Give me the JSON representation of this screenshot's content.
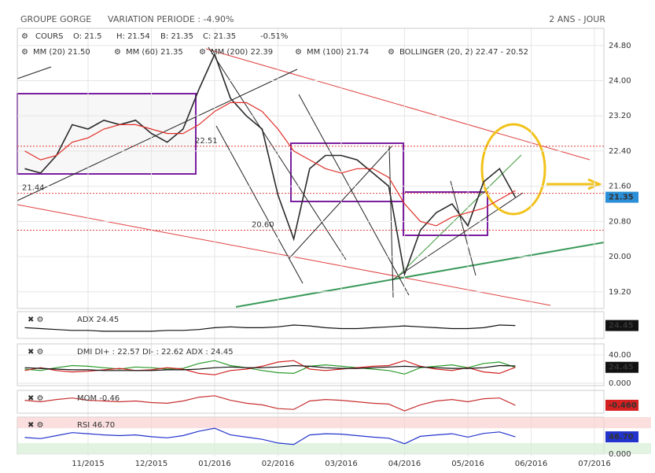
{
  "header": {
    "title": "GROUPE GORGE",
    "variation": "VARIATION PERIODE : -4.90%",
    "period": "2 ANS - JOUR"
  },
  "chart_data": [
    {
      "type": "line",
      "legend": {
        "cours": "COURS",
        "open": "O: 21.5",
        "high": "H: 21.54",
        "low": "B: 21.35",
        "close": "C: 21.35",
        "change": "-0.51%",
        "indicators": [
          {
            "name": "MM (20) 21.50",
            "color": "#e0302a"
          },
          {
            "name": "MM (60) 21.35",
            "color": "#e3a52a"
          },
          {
            "name": "MM (200) 22.39",
            "color": "#3a8a3a"
          },
          {
            "name": "MM (100) 21.74",
            "color": "#2bb3c0"
          },
          {
            "name": "BOLLINGER (20, 2) 22.47 - 20.52",
            "color": "#e39a2a"
          }
        ]
      },
      "categories": [
        null,
        null,
        null,
        null,
        "11/2015",
        null,
        null,
        null,
        "12/2015",
        null,
        null,
        null,
        "01/2016",
        null,
        null,
        null,
        "02/2016",
        null,
        null,
        null,
        "03/2016",
        null,
        null,
        null,
        "04/2016",
        null,
        null,
        null,
        "05/2016",
        null,
        null,
        null,
        "06/2016",
        null,
        null,
        null,
        "07/2016"
      ],
      "series": [
        {
          "name": "COURS",
          "color": "#2a2a2a",
          "values": [
            22.0,
            21.9,
            22.3,
            23.0,
            22.9,
            23.1,
            23.0,
            23.1,
            22.8,
            22.6,
            22.9,
            23.8,
            24.6,
            23.6,
            23.2,
            22.9,
            21.4,
            20.4,
            22.0,
            22.3,
            22.3,
            22.2,
            21.9,
            21.6,
            19.6,
            20.6,
            21.0,
            21.2,
            20.7,
            21.7,
            22.0,
            21.35,
            null,
            null,
            null,
            null,
            null
          ]
        },
        {
          "name": "MM (20)",
          "color": "#e0302a",
          "values": [
            22.4,
            22.2,
            22.3,
            22.6,
            22.7,
            22.9,
            23.0,
            23.0,
            22.9,
            22.8,
            22.8,
            23.0,
            23.3,
            23.5,
            23.5,
            23.3,
            22.9,
            22.4,
            22.2,
            22.0,
            21.9,
            22.0,
            22.0,
            21.8,
            21.2,
            20.8,
            20.7,
            20.9,
            21.0,
            21.1,
            21.3,
            21.5,
            null,
            null,
            null,
            null,
            null
          ]
        }
      ],
      "ylim": [
        18.82,
        25.19
      ],
      "yticks": [
        {
          "value": 19.2,
          "label": "19.20"
        },
        {
          "value": 20,
          "label": "20.00"
        },
        {
          "value": 20.8,
          "label": "20.80"
        },
        {
          "value": 21.6,
          "label": "21.60"
        },
        {
          "value": 22.4,
          "label": "22.40"
        },
        {
          "value": 23.2,
          "label": "23.20"
        },
        {
          "value": 24,
          "label": "24.00"
        },
        {
          "value": 24.8,
          "label": "24.80"
        }
      ],
      "annotations": [
        21.44,
        22.51,
        {
          "value": 20.6,
          "label": "20.60"
        }
      ],
      "last_label": "21.35",
      "last_color": "#2b8fd8"
    },
    {
      "type": "line",
      "title": "ADX 24.45",
      "series": [
        {
          "color": "#111111",
          "values": [
            22,
            21,
            20,
            19,
            19,
            18,
            18,
            18,
            18,
            19,
            19,
            20,
            22,
            23,
            22,
            22,
            23,
            25,
            24,
            22,
            21,
            21,
            22,
            23,
            24,
            23,
            22,
            21,
            21,
            22,
            25,
            24.45,
            null,
            null,
            null,
            null,
            null
          ]
        }
      ],
      "ylim": [
        10,
        40
      ],
      "yticks": [],
      "last_label": "24.45",
      "last_color": "#111111"
    },
    {
      "type": "line",
      "title": "DMI DI+ : 22.57 DI- : 22.62 ADX : 24.45",
      "series": [
        {
          "color": "#2a9a2a",
          "values": [
            20,
            18,
            22,
            25,
            24,
            22,
            20,
            23,
            22,
            20,
            21,
            28,
            32,
            25,
            22,
            18,
            15,
            14,
            24,
            26,
            24,
            22,
            20,
            18,
            13,
            22,
            24,
            26,
            22,
            28,
            30,
            22.57,
            null,
            null,
            null,
            null,
            null
          ]
        },
        {
          "color": "#d22020",
          "values": [
            18,
            22,
            18,
            16,
            17,
            19,
            21,
            18,
            19,
            22,
            20,
            14,
            12,
            18,
            20,
            24,
            30,
            32,
            20,
            18,
            20,
            22,
            24,
            25,
            32,
            24,
            20,
            18,
            22,
            16,
            14,
            22.62,
            null,
            null,
            null,
            null,
            null
          ]
        },
        {
          "color": "#111111",
          "values": [
            22,
            21,
            20,
            19,
            19,
            18,
            18,
            18,
            18,
            19,
            19,
            20,
            22,
            23,
            22,
            22,
            23,
            25,
            24,
            22,
            21,
            21,
            22,
            23,
            24,
            23,
            22,
            21,
            21,
            22,
            25,
            24.45,
            null,
            null,
            null,
            null,
            null
          ]
        }
      ],
      "ylim": [
        -3.3,
        55.6
      ],
      "yticks": [
        {
          "value": 0,
          "label": "0.000"
        },
        {
          "value": 40,
          "label": "40.00"
        }
      ],
      "last_label": "24.45",
      "last_color": "#111111"
    },
    {
      "type": "line",
      "title": "MOM -0.46",
      "series": [
        {
          "color": "#c83030",
          "values": [
            0.2,
            0,
            0.3,
            0.5,
            0.2,
            0.1,
            0,
            0.1,
            -0.1,
            -0.2,
            0.1,
            0.6,
            0.8,
            0.2,
            -0.2,
            -0.4,
            -0.9,
            -1.0,
            0.1,
            0.3,
            0.2,
            0,
            -0.2,
            -0.3,
            -1.2,
            -0.4,
            0.1,
            0.3,
            0,
            0.4,
            0.5,
            -0.46,
            null,
            null,
            null,
            null,
            null
          ]
        }
      ],
      "ylim": [
        -1.5,
        1.5
      ],
      "yticks": [],
      "last_label": "-0.460",
      "last_color": "#d42020"
    },
    {
      "type": "line",
      "title": "RSI 46.70",
      "series": [
        {
          "color": "#2233cc",
          "values": [
            45,
            42,
            50,
            58,
            55,
            52,
            50,
            52,
            47,
            44,
            50,
            62,
            70,
            52,
            46,
            40,
            30,
            26,
            52,
            55,
            54,
            50,
            46,
            43,
            28,
            48,
            52,
            55,
            46,
            56,
            60,
            46.7,
            null,
            null,
            null,
            null,
            null
          ]
        }
      ],
      "ylim": [
        0,
        100
      ],
      "yticks": [
        {
          "value": 0,
          "label": "0.000"
        }
      ],
      "last_label": "46.70",
      "last_color": "#2233cc"
    }
  ]
}
